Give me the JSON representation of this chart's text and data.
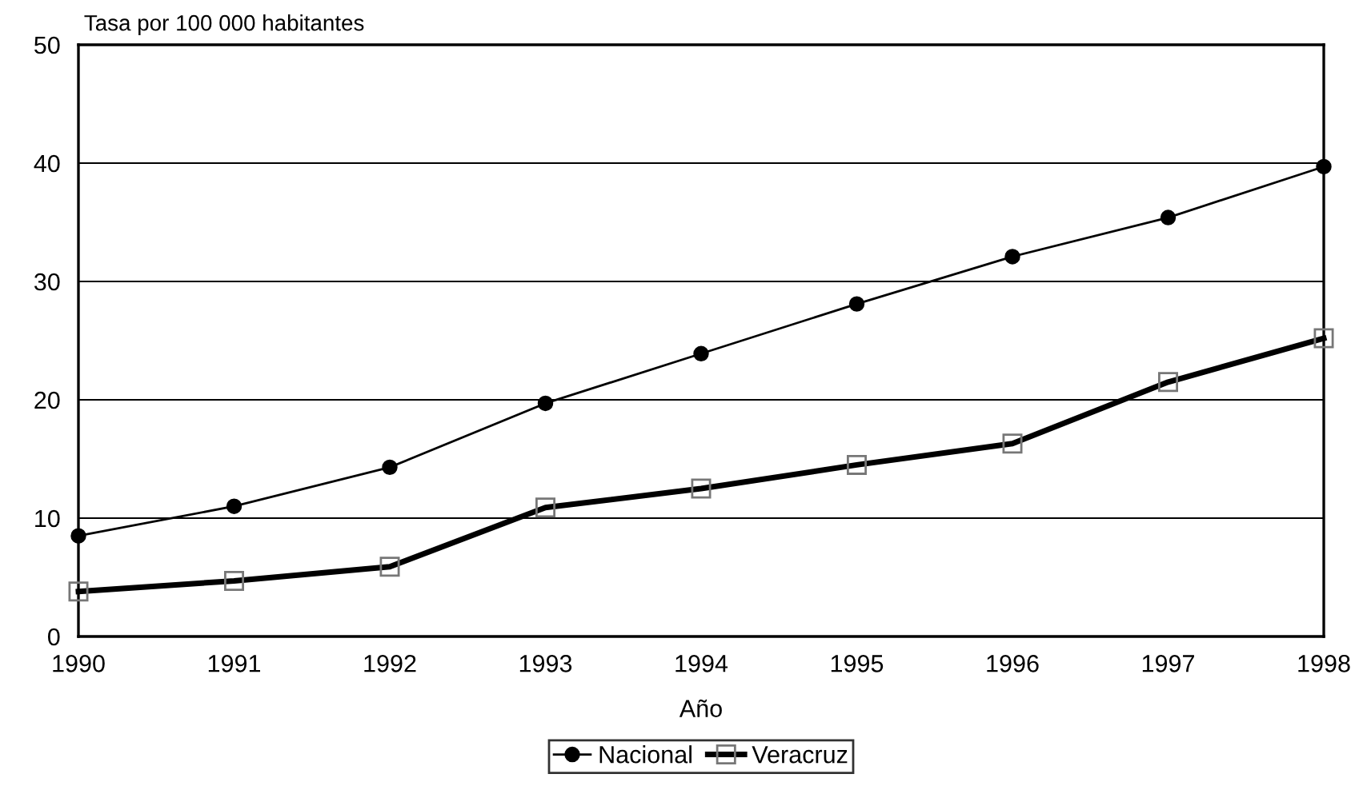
{
  "chart_data": {
    "type": "line",
    "ylabel": "Tasa por 100 000 habitantes",
    "xlabel": "Año",
    "x": [
      1990,
      1991,
      1992,
      1993,
      1994,
      1995,
      1996,
      1997,
      1998
    ],
    "series": [
      {
        "name": "Nacional",
        "color": "#000000",
        "marker": "circle",
        "values": [
          8.5,
          11.0,
          14.3,
          19.7,
          23.9,
          28.1,
          32.1,
          35.4,
          39.7
        ]
      },
      {
        "name": "Veracruz",
        "color": "#000000",
        "marker": "square",
        "values": [
          3.8,
          4.7,
          5.9,
          10.9,
          12.5,
          14.5,
          16.3,
          21.5,
          25.2
        ]
      }
    ],
    "xlim": [
      1990,
      1998
    ],
    "xticks": [
      1990,
      1991,
      1992,
      1993,
      1994,
      1995,
      1996,
      1997,
      1998
    ],
    "ylim": [
      0,
      50
    ],
    "yticks": [
      0,
      10,
      20,
      30,
      40,
      50
    ],
    "grid": "y",
    "legend": "bottom"
  }
}
